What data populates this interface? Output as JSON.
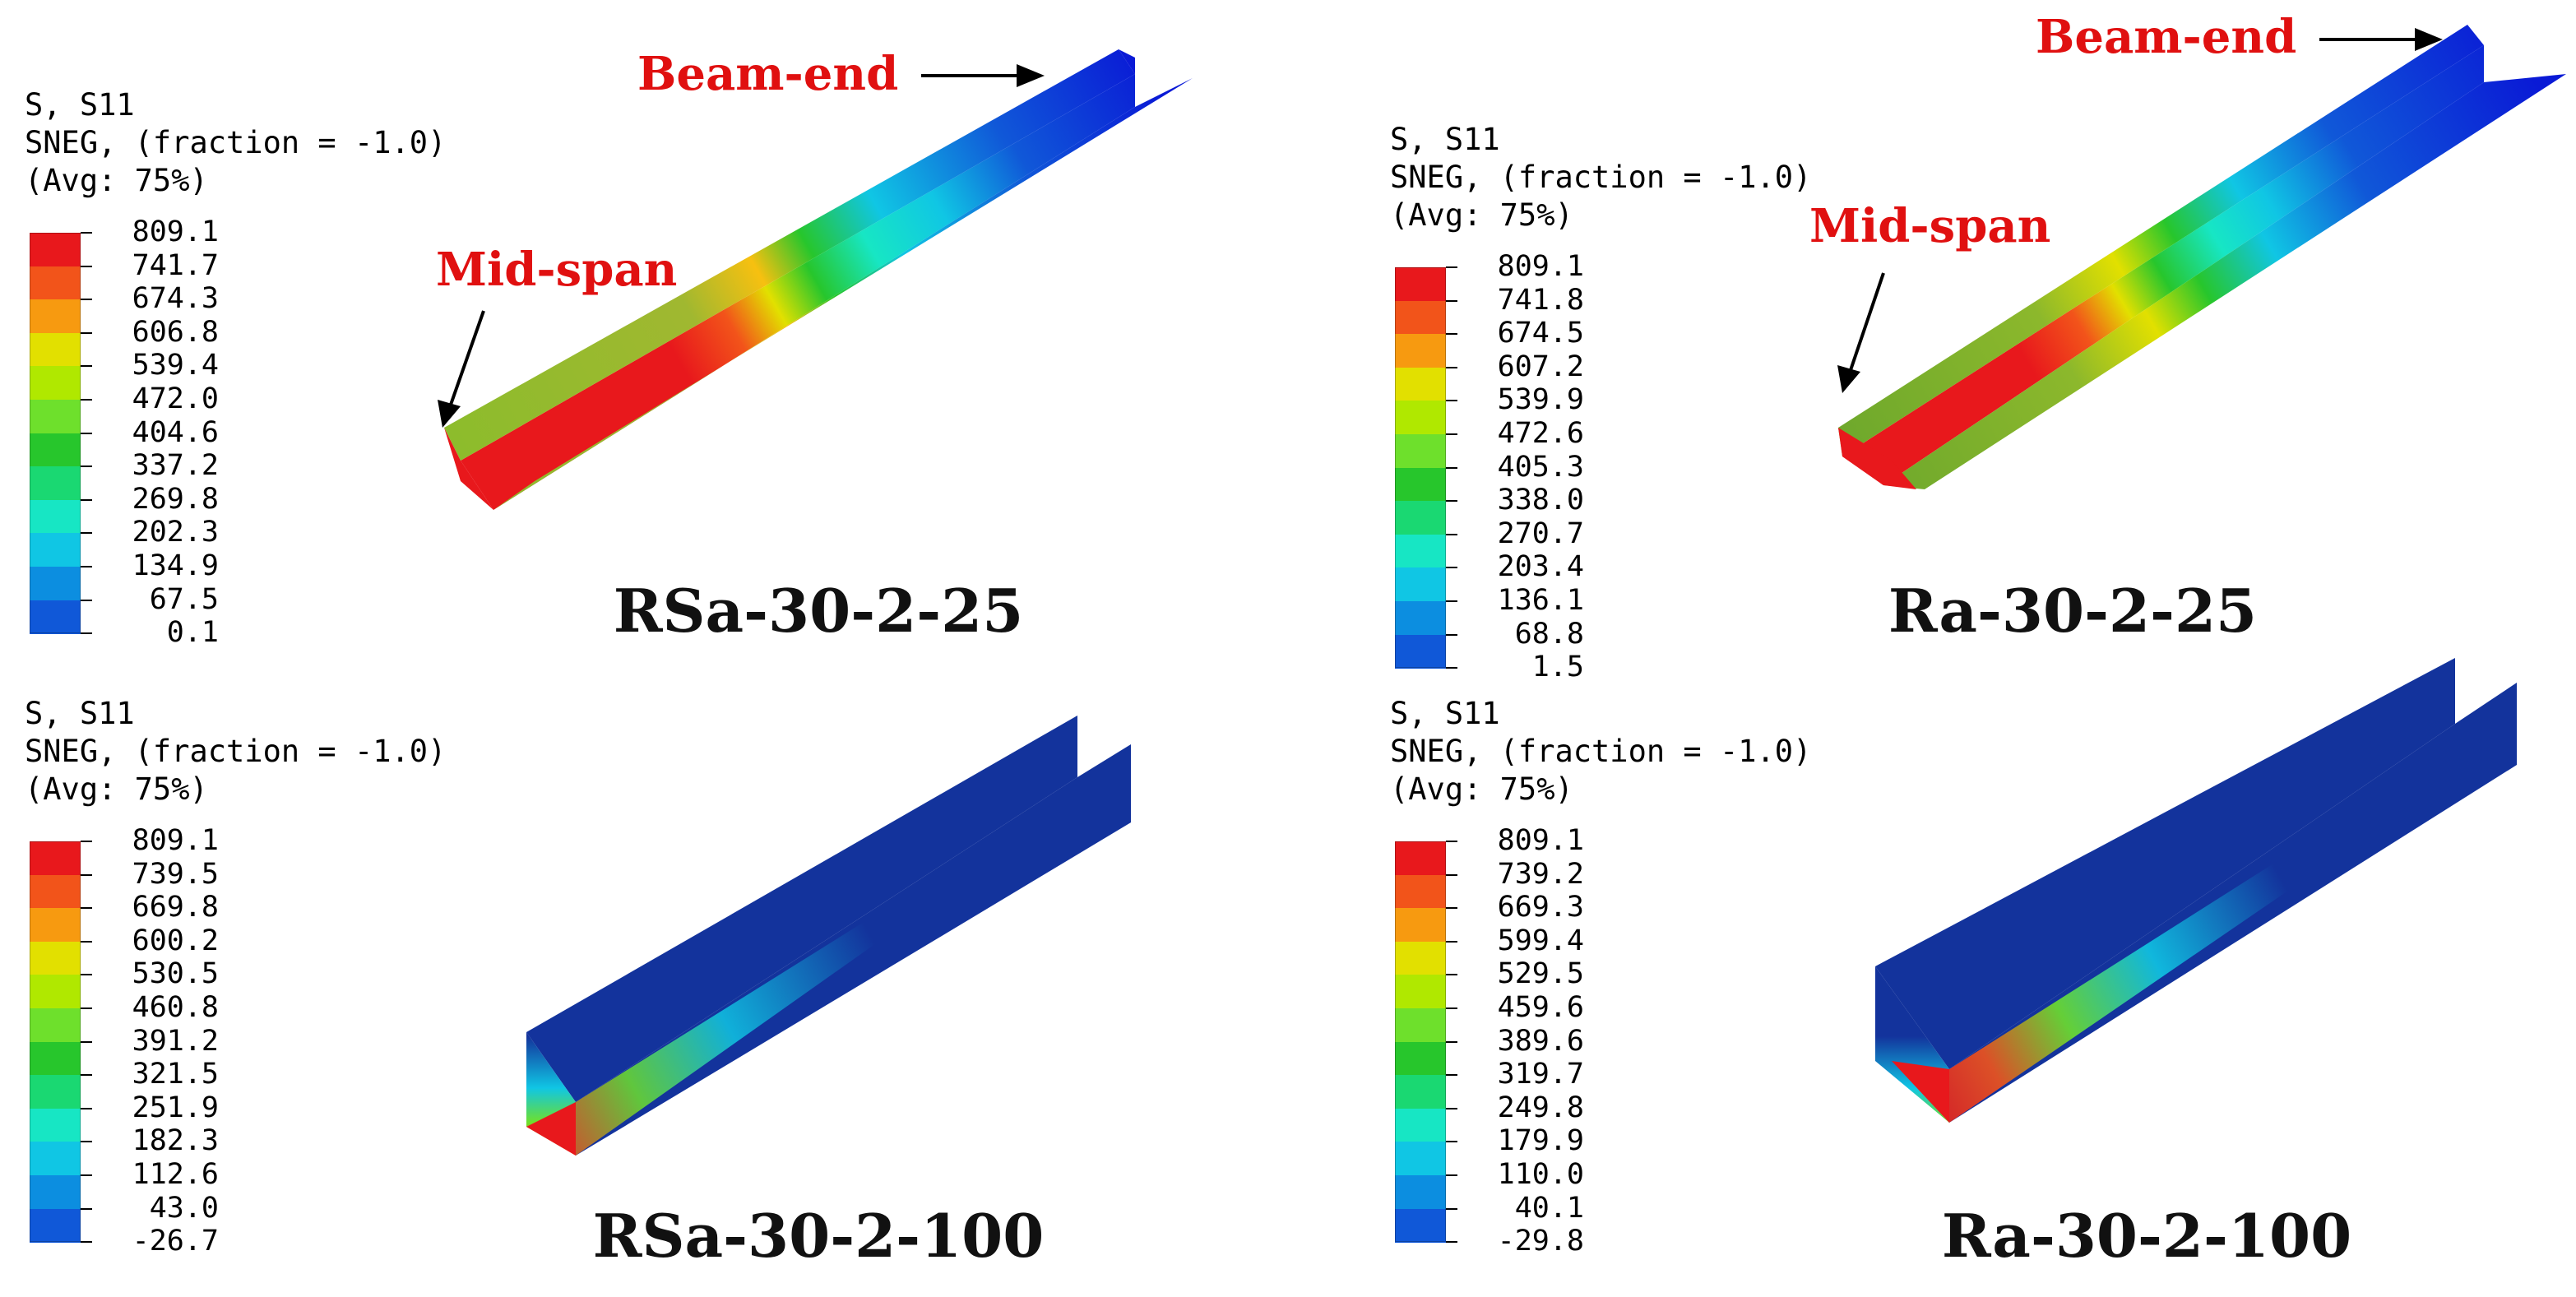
{
  "panels": [
    {
      "id": "rsa-30-2-25",
      "legend_lines": [
        "S, S11",
        "SNEG, (fraction = -1.0)",
        "(Avg: 75%)"
      ],
      "ticks": [
        "809.1",
        "741.7",
        "674.3",
        "606.8",
        "539.4",
        "472.0",
        "404.6",
        "337.2",
        "269.8",
        "202.3",
        "134.9",
        "67.5",
        "0.1"
      ],
      "caption": "RSa-30-2-25",
      "annotations": [
        "Beam-end",
        "Mid-span"
      ]
    },
    {
      "id": "ra-30-2-25",
      "legend_lines": [
        "S, S11",
        "SNEG, (fraction = -1.0)",
        "(Avg: 75%)"
      ],
      "ticks": [
        "809.1",
        "741.8",
        "674.5",
        "607.2",
        "539.9",
        "472.6",
        "405.3",
        "338.0",
        "270.7",
        "203.4",
        "136.1",
        "68.8",
        "1.5"
      ],
      "caption": "Ra-30-2-25",
      "annotations": [
        "Beam-end",
        "Mid-span"
      ]
    },
    {
      "id": "rsa-30-2-100",
      "legend_lines": [
        "S, S11",
        "SNEG, (fraction = -1.0)",
        "(Avg: 75%)"
      ],
      "ticks": [
        "809.1",
        "739.5",
        "669.8",
        "600.2",
        "530.5",
        "460.8",
        "391.2",
        "321.5",
        "251.9",
        "182.3",
        "112.6",
        "43.0",
        "-26.7"
      ],
      "caption": "RSa-30-2-100",
      "annotations": []
    },
    {
      "id": "ra-30-2-100",
      "legend_lines": [
        "S, S11",
        "SNEG, (fraction = -1.0)",
        "(Avg: 75%)"
      ],
      "ticks": [
        "809.1",
        "739.2",
        "669.3",
        "599.4",
        "529.5",
        "459.6",
        "389.6",
        "319.7",
        "249.8",
        "179.9",
        "110.0",
        "40.1",
        "-29.8"
      ],
      "caption": "Ra-30-2-100",
      "annotations": []
    }
  ],
  "colors": {
    "contour_bands_top_to_bottom": [
      "#e8181c",
      "#f2541a",
      "#f79a10",
      "#e2e000",
      "#b0e800",
      "#6ee02c",
      "#27c62c",
      "#1ad872",
      "#17e6c4",
      "#10c6e4",
      "#0c8ee0",
      "#1058d8",
      "#0a1ad6"
    ],
    "annotation_text": "#e01010",
    "arrow": "#000000",
    "beam_base": "#13339c",
    "beam_highlight": "#e8181c"
  }
}
